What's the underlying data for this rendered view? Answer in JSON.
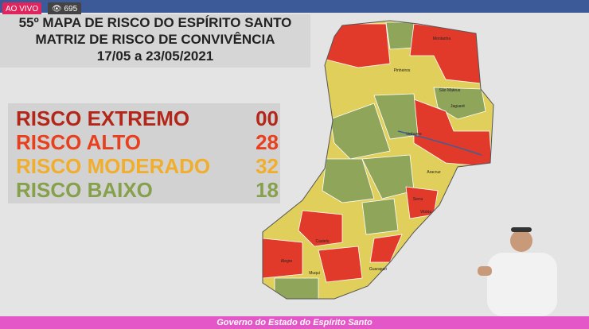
{
  "stream": {
    "live_badge": "AO VIVO",
    "viewers": "695"
  },
  "header": {
    "title_lines": [
      "55º MAPA DE RISCO DO ESPÍRITO SANTO",
      "MATRIZ DE RISCO DE CONVIVÊNCIA",
      "17/05 a 23/05/2021"
    ]
  },
  "risk_table": {
    "rows": [
      {
        "label": "RISCO EXTREMO",
        "count": "00"
      },
      {
        "label": "RISCO ALTO",
        "count": "28"
      },
      {
        "label": "RISCO MODERADO",
        "count": "32"
      },
      {
        "label": "RISCO BAIXO",
        "count": "18"
      }
    ]
  },
  "map": {
    "labels": [
      "Montanha",
      "Pinheiros",
      "São Mateus",
      "Jaguaré",
      "Linhares",
      "Aracruz",
      "Serra",
      "Vitória",
      "Castelo",
      "Alegre",
      "Muqui",
      "Guarapari"
    ]
  },
  "footer": {
    "text": "Governo do Estado do Espírito Santo"
  }
}
